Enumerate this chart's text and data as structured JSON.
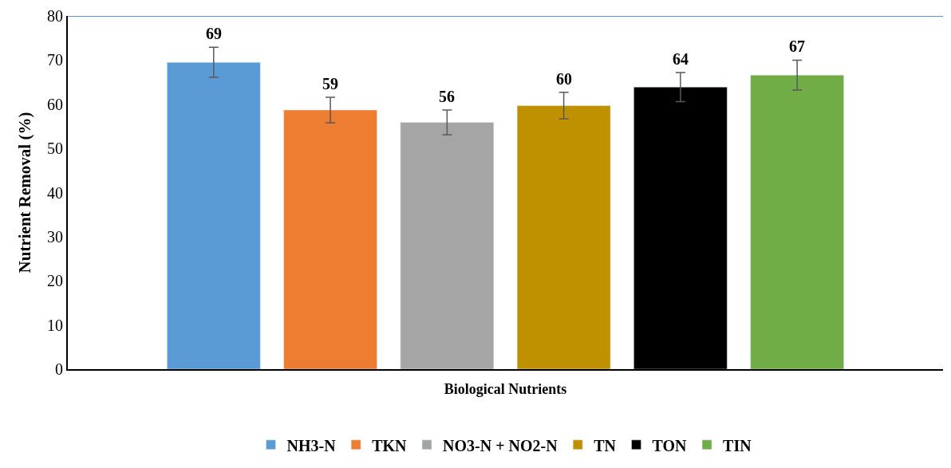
{
  "chart_data": {
    "type": "bar",
    "xlabel": "Biological Nutrients",
    "ylabel": "Nutrient Removal (%)",
    "categories": [
      null
    ],
    "series": [
      {
        "name": "NH3-N",
        "color": "#5b9bd5",
        "values": [
          69.5
        ],
        "errors": [
          3.4
        ],
        "value_labels": [
          "69"
        ]
      },
      {
        "name": "TKN",
        "color": "#ed7d31",
        "values": [
          58.7
        ],
        "errors": [
          2.9
        ],
        "value_labels": [
          "59"
        ]
      },
      {
        "name": "NO3-N + NO2-N",
        "color": "#a5a5a5",
        "values": [
          55.9
        ],
        "errors": [
          2.8
        ],
        "value_labels": [
          "56"
        ]
      },
      {
        "name": "TN",
        "color": "#bf9000",
        "values": [
          59.7
        ],
        "errors": [
          3.0
        ],
        "value_labels": [
          "60"
        ]
      },
      {
        "name": "TON",
        "color": "#000000",
        "values": [
          63.9
        ],
        "errors": [
          3.3
        ],
        "value_labels": [
          "64"
        ]
      },
      {
        "name": "TIN",
        "color": "#70ad47",
        "values": [
          66.6
        ],
        "errors": [
          3.4
        ],
        "value_labels": [
          "67"
        ]
      }
    ],
    "ylim": [
      0,
      80
    ],
    "yticks": [
      0,
      10,
      20,
      30,
      40,
      50,
      60,
      70,
      80
    ],
    "ref_lines": [
      {
        "axis": "y",
        "value": 80,
        "color": "#5b9bd5"
      }
    ],
    "legend": "bottom"
  }
}
